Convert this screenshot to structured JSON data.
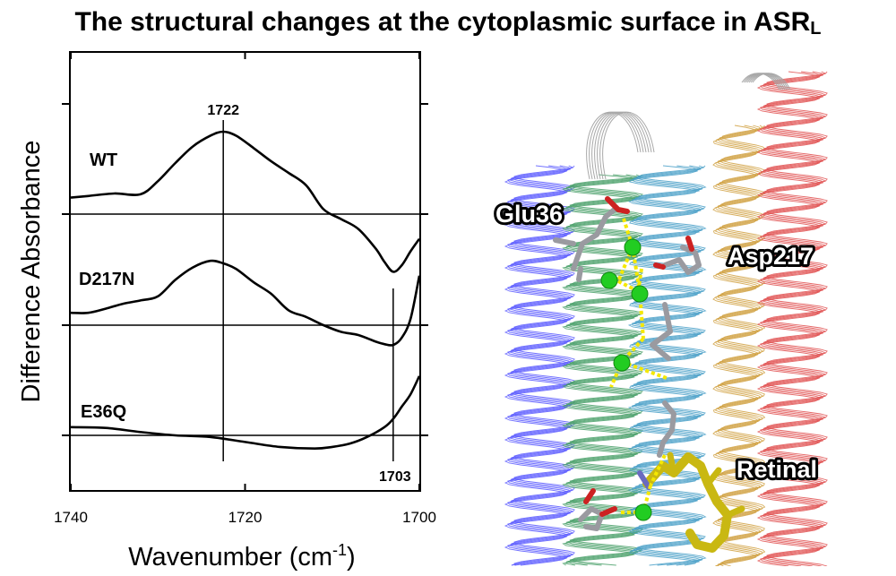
{
  "title": {
    "main": "The structural changes at the cytoplasmic surface in ASR",
    "subscript": "L"
  },
  "chart_data": {
    "type": "line",
    "xlabel": "Wavenumber (cm",
    "xlabel_superscript": "-1",
    "xlabel_close": ")",
    "ylabel": "Difference Absorbance",
    "xlim": [
      1740,
      1700
    ],
    "x_ticks": [
      1740,
      1720,
      1700
    ],
    "grid": false,
    "x_unit": "cm-1",
    "series": [
      {
        "name": "WT",
        "baseline": 2,
        "x": [
          1740,
          1738,
          1735,
          1732,
          1730,
          1728,
          1726,
          1724,
          1722.5,
          1721,
          1719,
          1717,
          1715,
          1713,
          1711,
          1709,
          1707,
          1705,
          1704,
          1703,
          1702,
          1701,
          1700
        ],
        "y": [
          0.2,
          0.22,
          0.25,
          0.24,
          0.4,
          0.62,
          0.82,
          0.95,
          1.0,
          0.95,
          0.8,
          0.64,
          0.5,
          0.35,
          0.06,
          -0.06,
          -0.18,
          -0.42,
          -0.58,
          -0.7,
          -0.62,
          -0.45,
          -0.3
        ]
      },
      {
        "name": "D217N",
        "baseline": 1,
        "x": [
          1740,
          1738,
          1736,
          1734,
          1732,
          1730,
          1728,
          1726,
          1724,
          1722.5,
          1721,
          1719,
          1717,
          1715,
          1713,
          1711,
          1709,
          1707,
          1705,
          1704,
          1703,
          1702,
          1701,
          1700
        ],
        "y": [
          0.15,
          0.15,
          0.2,
          0.26,
          0.3,
          0.35,
          0.55,
          0.7,
          0.78,
          0.75,
          0.68,
          0.52,
          0.38,
          0.18,
          0.1,
          0.0,
          -0.08,
          -0.12,
          -0.2,
          -0.23,
          -0.24,
          -0.15,
          0.08,
          0.6
        ]
      },
      {
        "name": "E36Q",
        "baseline": 0,
        "x": [
          1740,
          1736,
          1732,
          1728,
          1724,
          1720,
          1716,
          1712,
          1710,
          1708,
          1706,
          1704,
          1703,
          1702,
          1701,
          1700
        ],
        "y": [
          0.1,
          0.09,
          0.04,
          0.0,
          -0.02,
          -0.08,
          -0.14,
          -0.16,
          -0.14,
          -0.1,
          -0.02,
          0.1,
          0.2,
          0.35,
          0.5,
          0.72
        ]
      }
    ],
    "annotations": [
      {
        "label": "1722",
        "x": 1722.5
      },
      {
        "label": "1703",
        "x": 1703
      }
    ]
  },
  "structure_panel": {
    "labels": [
      "Glu36",
      "Asp217",
      "Retinal"
    ],
    "colors": {
      "helix_blue": "#5a5aff",
      "helix_green": "#4aa06a",
      "helix_teal": "#4aa0c8",
      "helix_orange": "#d0a040",
      "helix_red": "#e05050",
      "loop_gray": "#a8a8a8",
      "water": "#22cc22",
      "hbond": "#f5e800",
      "retinal": "#d8c81a"
    }
  }
}
